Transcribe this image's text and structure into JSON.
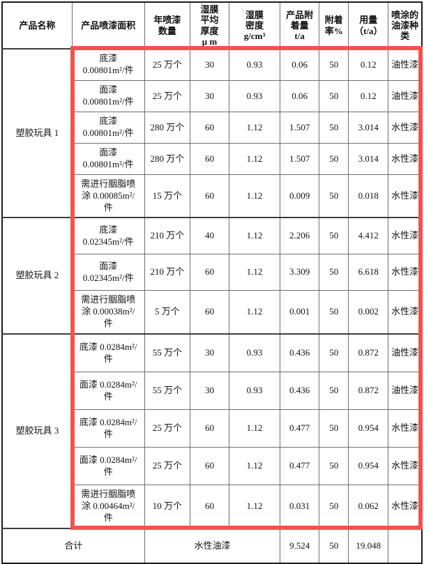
{
  "highlight": {
    "color": "#f25350"
  },
  "table": {
    "header": [
      "产品名称",
      "产品喷漆面积",
      "年喷漆\n数量",
      "湿膜\n平均\n厚度\nμ m",
      "湿膜\n密度\ng/cm³",
      "产品附\n着量\nt/a",
      "附着\n率%",
      "用量\n（t/a）",
      "喷涂的\n油漆种\n类"
    ],
    "groups": [
      {
        "product": "塑胶玩具 1",
        "rows": [
          [
            "底漆\n0.00801m²/件",
            "25 万个",
            "30",
            "0.93",
            "0.06",
            "50",
            "0.12",
            "油性漆"
          ],
          [
            "面漆\n0.00801m²/件",
            "25 万个",
            "30",
            "0.93",
            "0.06",
            "50",
            "0.12",
            "油性漆"
          ],
          [
            "底漆\n0.00801m²/件",
            "280 万个",
            "60",
            "1.12",
            "1.507",
            "50",
            "3.014",
            "水性漆"
          ],
          [
            "面漆\n0.00801m²/件",
            "280 万个",
            "60",
            "1.12",
            "1.507",
            "50",
            "3.014",
            "水性漆"
          ],
          [
            "需进行胭脂喷\n涂 0.00085m²/\n件",
            "15 万个",
            "60",
            "1.12",
            "0.009",
            "50",
            "0.018",
            "水性漆"
          ]
        ]
      },
      {
        "product": "塑胶玩具 2",
        "rows": [
          [
            "底漆\n0.02345m²/件",
            "210 万个",
            "40",
            "1.12",
            "2.206",
            "50",
            "4.412",
            "水性漆"
          ],
          [
            "面漆\n0.02345m²/件",
            "210 万个",
            "60",
            "1.12",
            "3.309",
            "50",
            "6.618",
            "水性漆"
          ],
          [
            "需进行胭脂喷\n涂 0.00038m²/\n件",
            "5 万个",
            "60",
            "1.12",
            "0.001",
            "50",
            "0.002",
            "水性漆"
          ]
        ]
      },
      {
        "product": "塑胶玩具 3",
        "rows": [
          [
            "底漆 0.0284m²/\n件",
            "55 万个",
            "30",
            "0.93",
            "0.436",
            "50",
            "0.872",
            "油性漆"
          ],
          [
            "面漆 0.0284m²/\n件",
            "55 万个",
            "30",
            "0.93",
            "0.436",
            "50",
            "0.872",
            "油性漆"
          ],
          [
            "底漆 0.0284m²/\n件",
            "25 万个",
            "60",
            "1.12",
            "0.477",
            "50",
            "0.954",
            "水性漆"
          ],
          [
            "面漆 0.0284m²/\n件",
            "25 万个",
            "60",
            "1.12",
            "0.477",
            "50",
            "0.954",
            "水性漆"
          ],
          [
            "需进行胭脂喷\n涂 0.00464m²/\n件",
            "10 万个",
            "60",
            "1.12",
            "0.031",
            "50",
            "0.062",
            "水性漆"
          ]
        ]
      }
    ],
    "total": {
      "label": "合计",
      "paint": "水性油漆",
      "adhesion": "9.524",
      "rate": "50",
      "usage": "19.048",
      "type": ""
    }
  }
}
